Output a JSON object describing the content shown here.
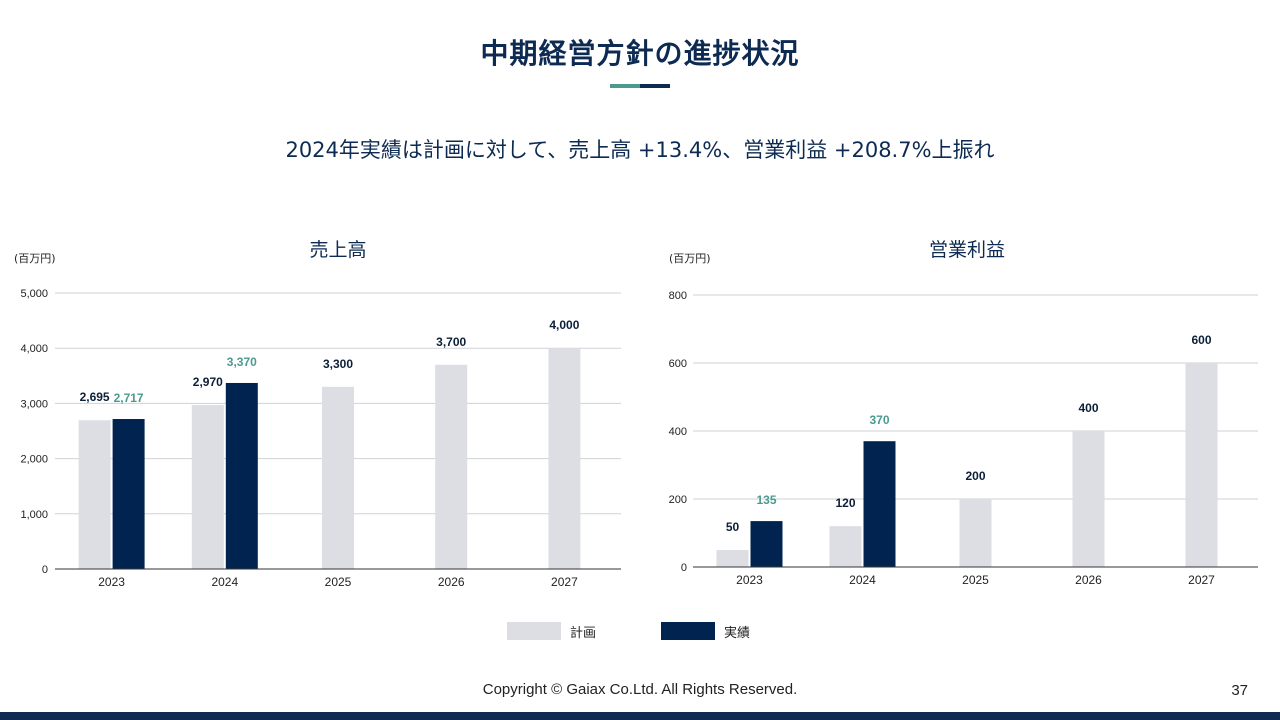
{
  "slide": {
    "title": "中期経営方針の進捗状況",
    "subtitle": "2024年実績は計画に対して、売上高 +13.4%、営業利益 +208.7%上振れ",
    "footer": "Copyright © Gaiax Co.Ltd. All Rights Reserved.",
    "page_number": "37"
  },
  "colors": {
    "plan": "#dcdee4",
    "actual": "#00244f",
    "highlight": "#4b9a90",
    "label": "#0b1f38",
    "teal": "#4b9a90",
    "navy": "#0d2b52",
    "bar": "#0d2b52",
    "grid": "#cfd2d6"
  },
  "legend": {
    "plan_label": "計画",
    "actual_label": "実績"
  },
  "chart_data": [
    {
      "type": "bar",
      "title": "売上高",
      "unit_label": "(百万円)",
      "categories": [
        "2023",
        "2024",
        "2025",
        "2026",
        "2027"
      ],
      "ylim": [
        0,
        5000
      ],
      "yticks": [
        0,
        1000,
        2000,
        3000,
        4000,
        5000
      ],
      "ytick_labels": [
        "0",
        "1,000",
        "2,000",
        "3,000",
        "4,000",
        "5,000"
      ],
      "grid": true,
      "legend_position": "bottom-center",
      "series": [
        {
          "name": "計画",
          "values": [
            2695,
            2970,
            3300,
            3700,
            4000
          ],
          "labels": [
            "2,695",
            "2,970",
            "3,300",
            "3,700",
            "4,000"
          ]
        },
        {
          "name": "実績",
          "values": [
            2717,
            3370,
            null,
            null,
            null
          ],
          "labels": [
            "2,717",
            "3,370",
            "",
            "",
            ""
          ]
        }
      ]
    },
    {
      "type": "bar",
      "title": "営業利益",
      "unit_label": "(百万円)",
      "categories": [
        "2023",
        "2024",
        "2025",
        "2026",
        "2027"
      ],
      "ylim": [
        0,
        800
      ],
      "yticks": [
        0,
        200,
        400,
        600,
        800
      ],
      "ytick_labels": [
        "0",
        "200",
        "400",
        "600",
        "800"
      ],
      "grid": true,
      "legend_position": "bottom-center",
      "series": [
        {
          "name": "計画",
          "values": [
            50,
            120,
            200,
            400,
            600
          ],
          "labels": [
            "50",
            "120",
            "200",
            "400",
            "600"
          ]
        },
        {
          "name": "実績",
          "values": [
            135,
            370,
            null,
            null,
            null
          ],
          "labels": [
            "135",
            "370",
            "",
            "",
            ""
          ]
        }
      ]
    }
  ]
}
